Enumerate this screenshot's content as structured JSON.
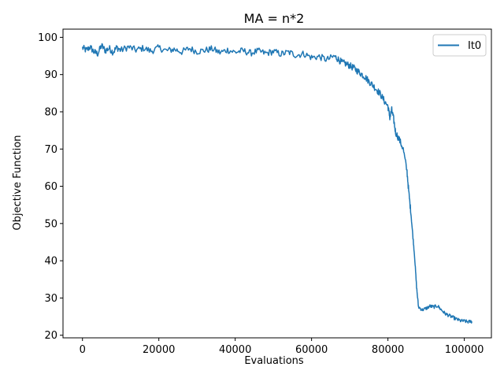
{
  "chart_data": {
    "type": "line",
    "title": "MA = n*2",
    "xlabel": "Evaluations",
    "ylabel": "Objective Function",
    "xlim": [
      -5100,
      107100
    ],
    "ylim": [
      19.3,
      102.2
    ],
    "xticks": [
      0,
      20000,
      40000,
      60000,
      80000,
      100000
    ],
    "yticks": [
      20,
      30,
      40,
      50,
      60,
      70,
      80,
      90,
      100
    ],
    "grid": false,
    "legend_position": "top-right",
    "series": [
      {
        "name": "It0",
        "color": "#1f77b4",
        "x": [
          0,
          1000,
          2000,
          3000,
          4000,
          5000,
          6000,
          7000,
          8000,
          9000,
          10000,
          12000,
          14000,
          16000,
          18000,
          20000,
          22000,
          24000,
          26000,
          28000,
          30000,
          32000,
          34000,
          36000,
          38000,
          40000,
          42000,
          44000,
          46000,
          48000,
          50000,
          52000,
          54000,
          56000,
          58000,
          60000,
          62000,
          64000,
          66000,
          67000,
          68000,
          69000,
          70000,
          71000,
          72000,
          73000,
          74000,
          75000,
          76000,
          77000,
          78000,
          79000,
          80000,
          80500,
          81000,
          81500,
          82000,
          83000,
          84000,
          85000,
          85500,
          86000,
          86500,
          87000,
          87500,
          88000,
          89000,
          90000,
          91000,
          92000,
          93000,
          94000,
          95000,
          96000,
          97000,
          98000,
          99000,
          100000,
          101000,
          102000
        ],
        "y": [
          97.2,
          96.5,
          97.4,
          96.1,
          95.6,
          97.8,
          96.4,
          97.1,
          96.0,
          97.3,
          96.5,
          97.4,
          96.6,
          97.1,
          96.3,
          97.2,
          96.4,
          96.8,
          96.1,
          97.0,
          96.2,
          96.5,
          96.9,
          95.9,
          96.6,
          96.0,
          96.4,
          95.8,
          96.3,
          95.7,
          96.2,
          95.5,
          96.0,
          95.2,
          95.6,
          94.6,
          94.8,
          94.0,
          94.9,
          94.1,
          93.2,
          92.9,
          92.4,
          91.8,
          91.0,
          90.2,
          89.4,
          88.2,
          87.2,
          86.0,
          84.8,
          83.0,
          81.5,
          78.5,
          80.5,
          78.0,
          74.5,
          72.5,
          70.0,
          64.0,
          58.0,
          53.0,
          47.0,
          41.0,
          33.0,
          27.6,
          26.8,
          27.2,
          27.8,
          27.6,
          27.9,
          26.8,
          25.8,
          25.3,
          24.8,
          24.3,
          23.9,
          23.8,
          23.6,
          23.7
        ]
      }
    ]
  }
}
